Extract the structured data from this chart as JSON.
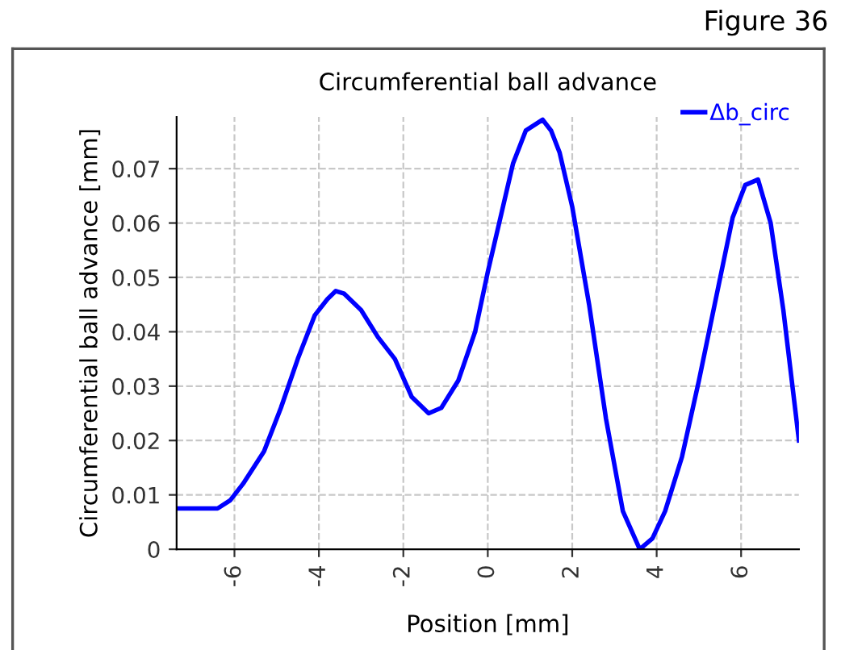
{
  "chart_data": {
    "type": "line",
    "title": "Circumferential ball advance",
    "xlabel": "Position [mm]",
    "ylabel": "Circumferential ball advance [mm]",
    "annotations": [
      "Figure 36"
    ],
    "x": [
      -7.37,
      -6.4,
      -6.1,
      -5.8,
      -5.3,
      -4.9,
      -4.5,
      -4.1,
      -3.8,
      -3.6,
      -3.4,
      -3.0,
      -2.6,
      -2.2,
      -1.8,
      -1.4,
      -1.1,
      -0.7,
      -0.3,
      0.0,
      0.3,
      0.6,
      0.9,
      1.3,
      1.5,
      1.7,
      2.0,
      2.4,
      2.8,
      3.2,
      3.6,
      3.9,
      4.2,
      4.6,
      5.0,
      5.4,
      5.8,
      6.1,
      6.4,
      6.7,
      7.0,
      7.37
    ],
    "series": [
      {
        "name": "Δb_circ",
        "color": "#0000ff",
        "values": [
          0.0075,
          0.0075,
          0.009,
          0.012,
          0.018,
          0.026,
          0.035,
          0.043,
          0.046,
          0.0475,
          0.047,
          0.044,
          0.039,
          0.035,
          0.028,
          0.025,
          0.026,
          0.031,
          0.04,
          0.051,
          0.061,
          0.071,
          0.077,
          0.079,
          0.077,
          0.073,
          0.063,
          0.045,
          0.024,
          0.007,
          0.0,
          0.002,
          0.007,
          0.017,
          0.031,
          0.046,
          0.061,
          0.067,
          0.068,
          0.06,
          0.044,
          0.02
        ]
      }
    ],
    "xlim": [
      -7.37,
      7.37
    ],
    "ylim": [
      0,
      0.0795
    ],
    "xticks": [
      -6,
      -4,
      -2,
      0,
      2,
      4,
      6
    ],
    "yticks": [
      0,
      0.01,
      0.02,
      0.03,
      0.04,
      0.05,
      0.06,
      0.07
    ],
    "grid": true,
    "legend": "top right",
    "line_style": "solid",
    "marker": "none"
  }
}
